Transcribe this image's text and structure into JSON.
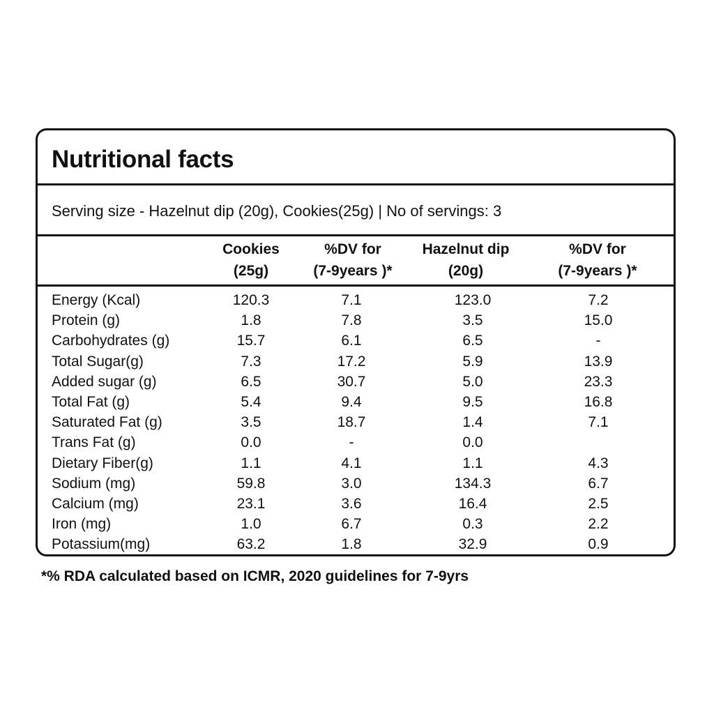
{
  "title": "Nutritional facts",
  "serving": "Serving size - Hazelnut dip (20g), Cookies(25g) | No of servings: 3",
  "columns": [
    {
      "line1": "Cookies",
      "line2": "(25g)"
    },
    {
      "line1": "%DV for",
      "line2": "(7-9years )*"
    },
    {
      "line1": "Hazelnut dip",
      "line2": "(20g)"
    },
    {
      "line1": "%DV for",
      "line2": "(7-9years )*"
    }
  ],
  "rows": [
    {
      "name": "Energy (Kcal)",
      "cookies": "120.3",
      "cookies_dv": "7.1",
      "dip": "123.0",
      "dip_dv": "7.2"
    },
    {
      "name": "Protein (g)",
      "cookies": "1.8",
      "cookies_dv": "7.8",
      "dip": "3.5",
      "dip_dv": "15.0"
    },
    {
      "name": "Carbohydrates (g)",
      "cookies": "15.7",
      "cookies_dv": "6.1",
      "dip": "6.5",
      "dip_dv": "-"
    },
    {
      "name": "Total Sugar(g)",
      "cookies": "7.3",
      "cookies_dv": "17.2",
      "dip": "5.9",
      "dip_dv": "13.9"
    },
    {
      "name": "Added sugar (g)",
      "cookies": "6.5",
      "cookies_dv": "30.7",
      "dip": "5.0",
      "dip_dv": "23.3"
    },
    {
      "name": "Total Fat (g)",
      "cookies": "5.4",
      "cookies_dv": "9.4",
      "dip": "9.5",
      "dip_dv": "16.8"
    },
    {
      "name": "Saturated Fat (g)",
      "cookies": "3.5",
      "cookies_dv": "18.7",
      "dip": "1.4",
      "dip_dv": "7.1"
    },
    {
      "name": "Trans Fat (g)",
      "cookies": "0.0",
      "cookies_dv": "-",
      "dip": "0.0",
      "dip_dv": ""
    },
    {
      "name": "Dietary Fiber(g)",
      "cookies": "1.1",
      "cookies_dv": "4.1",
      "dip": "1.1",
      "dip_dv": "4.3"
    },
    {
      "name": "Sodium (mg)",
      "cookies": "59.8",
      "cookies_dv": "3.0",
      "dip": "134.3",
      "dip_dv": "6.7"
    },
    {
      "name": "Calcium (mg)",
      "cookies": "23.1",
      "cookies_dv": "3.6",
      "dip": "16.4",
      "dip_dv": "2.5"
    },
    {
      "name": "Iron (mg)",
      "cookies": "1.0",
      "cookies_dv": "6.7",
      "dip": "0.3",
      "dip_dv": "2.2"
    },
    {
      "name": "Potassium(mg)",
      "cookies": "63.2",
      "cookies_dv": "1.8",
      "dip": "32.9",
      "dip_dv": "0.9"
    }
  ],
  "footnote": "*% RDA calculated based on ICMR, 2020 guidelines for 7-9yrs"
}
